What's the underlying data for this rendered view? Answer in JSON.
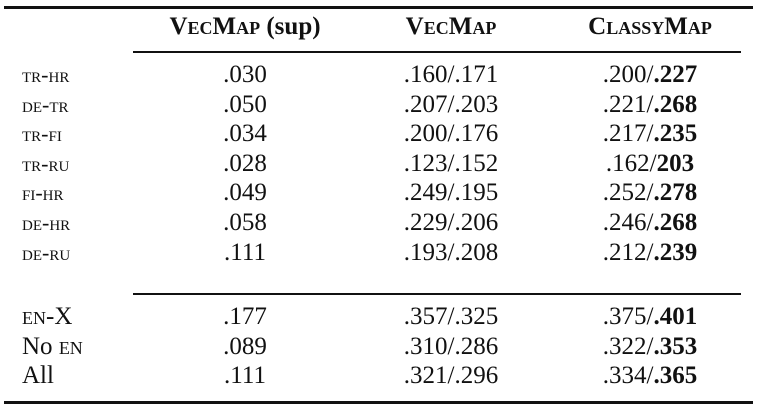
{
  "table": {
    "header": [
      [
        {
          "text": "VecMap",
          "sc": true
        },
        {
          "text": " (sup)",
          "sc": false
        }
      ],
      [
        {
          "text": "VecMap",
          "sc": true
        }
      ],
      [
        {
          "text": "ClassyMap",
          "sc": true
        }
      ]
    ],
    "groups": [
      {
        "rows": [
          {
            "label": [
              {
                "text": "tr-hr",
                "sc": true
              }
            ],
            "sup": ".030",
            "vecmap": ".160/.171",
            "classy": [
              ".200/",
              ".227"
            ]
          },
          {
            "label": [
              {
                "text": "de-tr",
                "sc": true
              }
            ],
            "sup": ".050",
            "vecmap": ".207/.203",
            "classy": [
              ".221/",
              ".268"
            ]
          },
          {
            "label": [
              {
                "text": "tr-fi",
                "sc": true
              }
            ],
            "sup": ".034",
            "vecmap": ".200/.176",
            "classy": [
              ".217/",
              ".235"
            ]
          },
          {
            "label": [
              {
                "text": "tr-ru",
                "sc": true
              }
            ],
            "sup": ".028",
            "vecmap": ".123/.152",
            "classy": [
              ".162/",
              "203"
            ]
          },
          {
            "label": [
              {
                "text": "fi-hr",
                "sc": true
              }
            ],
            "sup": ".049",
            "vecmap": ".249/.195",
            "classy": [
              ".252/",
              ".278"
            ]
          },
          {
            "label": [
              {
                "text": "de-hr",
                "sc": true
              }
            ],
            "sup": ".058",
            "vecmap": ".229/.206",
            "classy": [
              ".246/",
              ".268"
            ]
          },
          {
            "label": [
              {
                "text": "de-ru",
                "sc": true
              }
            ],
            "sup": ".111",
            "vecmap": ".193/.208",
            "classy": [
              ".212/",
              ".239"
            ]
          }
        ]
      },
      {
        "rows": [
          {
            "label": [
              {
                "text": "en",
                "sc": true
              },
              {
                "text": "-X",
                "sc": false
              }
            ],
            "sup": ".177",
            "vecmap": ".357/.325",
            "classy": [
              ".375/",
              ".401"
            ]
          },
          {
            "label": [
              {
                "text": "No ",
                "sc": false
              },
              {
                "text": "en",
                "sc": true
              }
            ],
            "sup": ".089",
            "vecmap": ".310/.286",
            "classy": [
              ".322/",
              ".353"
            ]
          },
          {
            "label": [
              {
                "text": "All",
                "sc": false
              }
            ],
            "sup": ".111",
            "vecmap": ".321/.296",
            "classy": [
              ".334/",
              ".365"
            ]
          }
        ]
      }
    ]
  }
}
